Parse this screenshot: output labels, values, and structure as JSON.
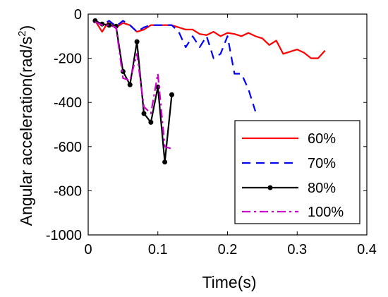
{
  "chart_data": {
    "type": "line",
    "xlabel": "Time(s)",
    "ylabel_main": "Angular acceleration(rad/s",
    "ylabel_sup": "2",
    "ylabel_tail": ")",
    "xlim": [
      0,
      0.4
    ],
    "ylim": [
      -1000,
      0
    ],
    "xticks": [
      0,
      0.1,
      0.2,
      0.3,
      0.4
    ],
    "xtick_labels": [
      "0",
      "0.1",
      "0.2",
      "0.3",
      "0.4"
    ],
    "yticks": [
      0,
      -200,
      -400,
      -600,
      -800,
      -1000
    ],
    "ytick_labels": [
      "0",
      "-200",
      "-400",
      "-600",
      "-800",
      "-1000"
    ],
    "grid": false,
    "legend_position": "bottom-right",
    "series": [
      {
        "name": "60%",
        "color": "#ff0000",
        "dash": "solid",
        "marker": "none",
        "x": [
          0.01,
          0.02,
          0.03,
          0.04,
          0.05,
          0.06,
          0.07,
          0.08,
          0.09,
          0.1,
          0.11,
          0.12,
          0.13,
          0.14,
          0.15,
          0.16,
          0.17,
          0.18,
          0.19,
          0.2,
          0.21,
          0.22,
          0.23,
          0.24,
          0.25,
          0.26,
          0.27,
          0.28,
          0.29,
          0.3,
          0.31,
          0.32,
          0.33,
          0.34
        ],
        "y": [
          -30,
          -80,
          -30,
          -60,
          -40,
          -50,
          -80,
          -70,
          -50,
          -50,
          -50,
          -50,
          -60,
          -70,
          -70,
          -90,
          -95,
          -80,
          -100,
          -85,
          -90,
          -100,
          -85,
          -100,
          -110,
          -140,
          -120,
          -180,
          -170,
          -160,
          -175,
          -200,
          -200,
          -165
        ]
      },
      {
        "name": "70%",
        "color": "#0000ff",
        "dash": "dashed",
        "marker": "none",
        "x": [
          0.01,
          0.02,
          0.03,
          0.04,
          0.05,
          0.06,
          0.07,
          0.08,
          0.09,
          0.1,
          0.11,
          0.12,
          0.13,
          0.14,
          0.15,
          0.16,
          0.17,
          0.18,
          0.19,
          0.2,
          0.21,
          0.22,
          0.23,
          0.24
        ],
        "y": [
          -30,
          -50,
          -30,
          -55,
          -30,
          -50,
          -80,
          -60,
          -50,
          -50,
          -50,
          -50,
          -80,
          -150,
          -100,
          -150,
          -100,
          -200,
          -180,
          -100,
          -270,
          -270,
          -340,
          -440
        ]
      },
      {
        "name": "80%",
        "color": "#000000",
        "dash": "solid",
        "marker": "dot",
        "x": [
          0.01,
          0.02,
          0.03,
          0.04,
          0.05,
          0.06,
          0.07,
          0.08,
          0.09,
          0.1,
          0.11,
          0.12
        ],
        "y": [
          -30,
          -45,
          -50,
          -55,
          -260,
          -320,
          -125,
          -450,
          -490,
          -330,
          -670,
          -365
        ]
      },
      {
        "name": "100%",
        "color": "#cc00cc",
        "dash": "dashdot",
        "marker": "none",
        "x": [
          0.01,
          0.02,
          0.03,
          0.04,
          0.05,
          0.06,
          0.07,
          0.08,
          0.09,
          0.1,
          0.11,
          0.12
        ],
        "y": [
          -35,
          -50,
          -50,
          -60,
          -290,
          -300,
          -180,
          -420,
          -450,
          -270,
          -600,
          -610
        ]
      }
    ]
  }
}
